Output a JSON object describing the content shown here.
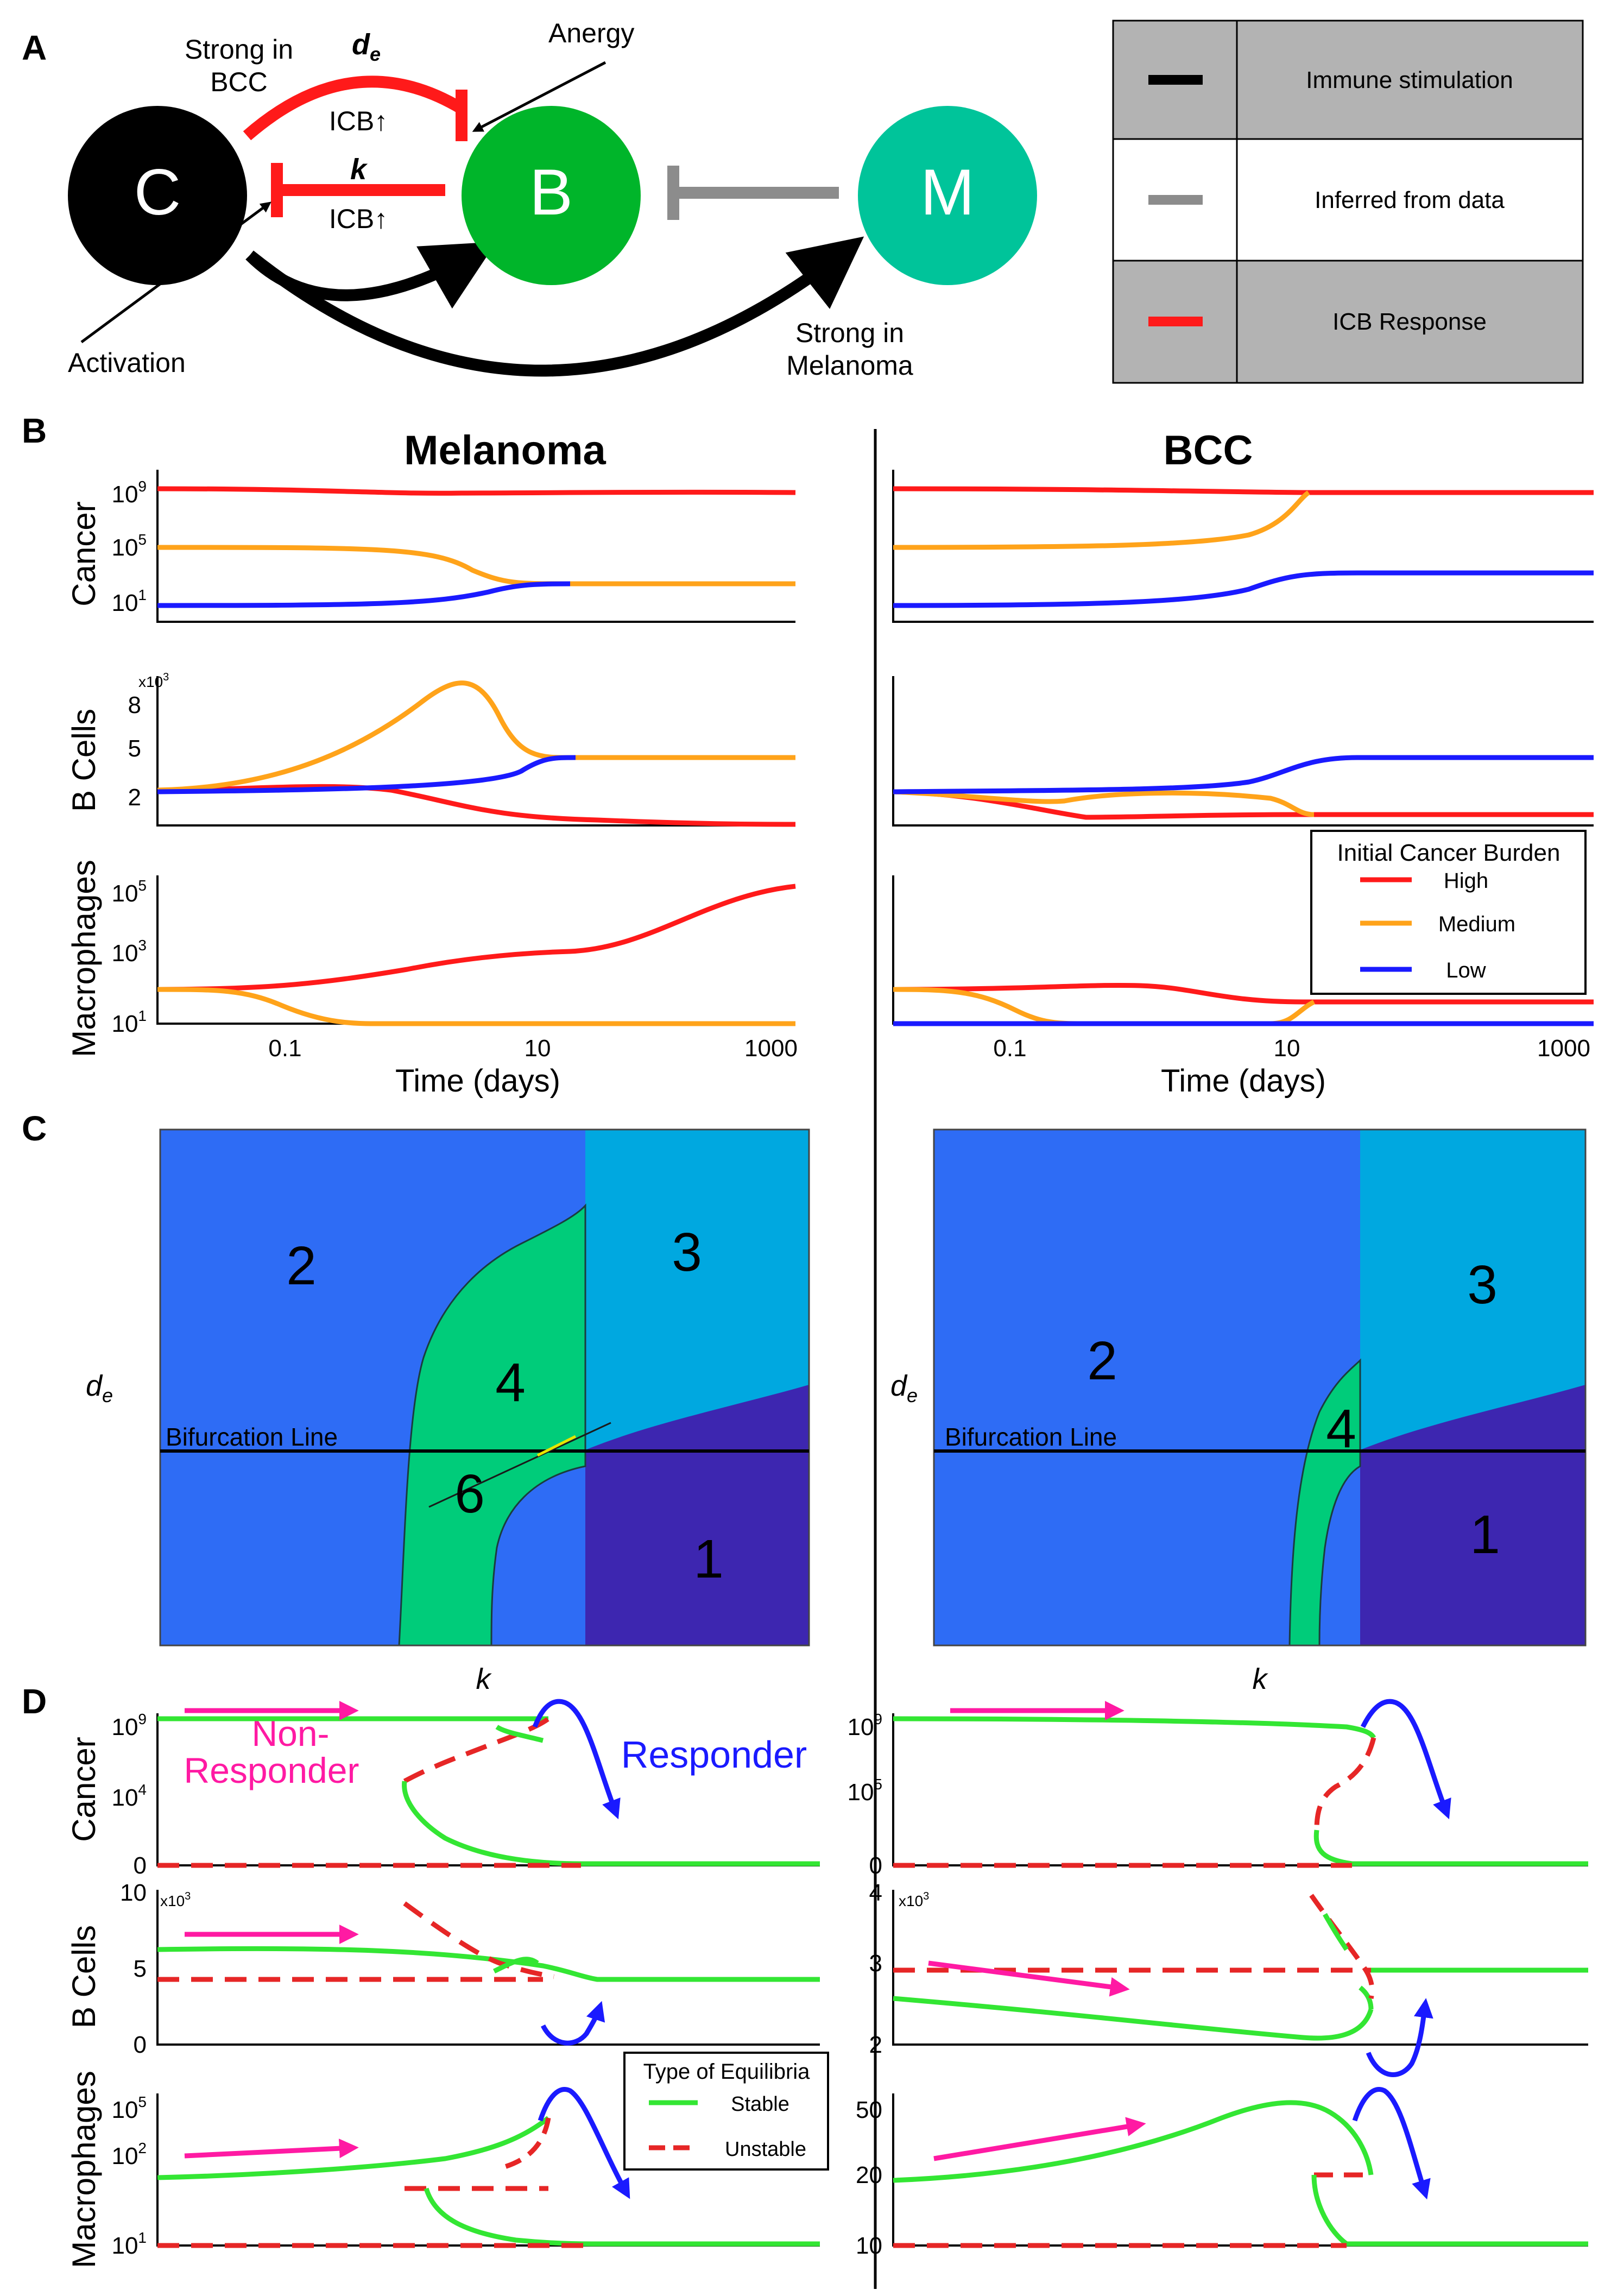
{
  "panel_labels": {
    "a": "A",
    "b": "B",
    "c": "C",
    "d": "D"
  },
  "diagram": {
    "nodes": {
      "c": "C",
      "b": "B",
      "m": "M"
    },
    "labels": {
      "strong_bcc_1": "Strong in",
      "strong_bcc_2": "BCC",
      "de": "d",
      "de_sub": "e",
      "anergy": "Anergy",
      "icb_top": "ICB↑",
      "k": "k",
      "icb_bottom": "ICB↑",
      "activation": "Activation",
      "strong_mel_1": "Strong in",
      "strong_mel_2": "Melanoma"
    },
    "colors": {
      "c": "#000000",
      "b": "#00b52a",
      "m": "#00c49a",
      "red": "#ff1a1a",
      "gray": "#8c8c8c"
    }
  },
  "legend_table": [
    {
      "label": "Immune stimulation",
      "color": "#000000",
      "bg": "#b3b3b3"
    },
    {
      "label": "Inferred from data",
      "color": "#8c8c8c",
      "bg": "#ffffff"
    },
    {
      "label": "ICB Response",
      "color": "#ff1a1a",
      "bg": "#b3b3b3"
    }
  ],
  "panel_b": {
    "titles": {
      "melanoma": "Melanoma",
      "bcc": "BCC"
    },
    "row_labels": {
      "cancer": "Cancer",
      "bcells": "B Cells",
      "macrophages": "Macrophages"
    },
    "xlabel": "Time (days)",
    "xticks": [
      "0.1",
      "10",
      "1000"
    ],
    "cancer_ticks": {
      "t9": "10",
      "e9": "9",
      "t5": "10",
      "e5": "5",
      "t1": "10",
      "e1": "1"
    },
    "bcell_ticks": [
      "8",
      "5",
      "2"
    ],
    "bcell_multiplier": "x10",
    "bcell_exp": "3",
    "mac_ticks": {
      "t5": "10",
      "e5": "5",
      "t3": "10",
      "e3": "3",
      "t1": "10",
      "e1": "1"
    },
    "legend": {
      "title": "Initial Cancer Burden",
      "items": [
        {
          "label": "High",
          "color": "#ff1a1a"
        },
        {
          "label": "Medium",
          "color": "#ffa31a"
        },
        {
          "label": "Low",
          "color": "#1a1aff"
        }
      ]
    }
  },
  "panel_c": {
    "xlabel": "k",
    "ylabel": "d",
    "ylabel_sub": "e",
    "bifurcation_label": "Bifurcation Line",
    "regions": {
      "r1": "1",
      "r2": "2",
      "r3": "3",
      "r4": "4",
      "r6": "6"
    },
    "colors": {
      "r1": "#3d26b0",
      "r2": "#2e6cf5",
      "r3": "#00a8e0",
      "r4": "#00cc7a"
    }
  },
  "panel_d": {
    "non_responder_1": "Non-",
    "non_responder_2": "Responder",
    "responder": "Responder",
    "mel_cancer_ticks": {
      "t9": "10",
      "e9": "9",
      "t4": "10",
      "e4": "4",
      "zero": "0"
    },
    "bcc_cancer_ticks": {
      "t9": "10",
      "e9": "9",
      "t5": "10",
      "e5": "5",
      "zero": "0"
    },
    "mel_bcell_ticks": [
      "10",
      "5",
      "0"
    ],
    "bcc_bcell_ticks": [
      "4",
      "3",
      "2"
    ],
    "bcell_multiplier": "x10",
    "bcell_exp": "3",
    "mel_mac_ticks": {
      "t5": "10",
      "e5": "5",
      "t2": "10",
      "e2": "2",
      "t1": "10",
      "e1": "1"
    },
    "bcc_mac_ticks": [
      "50",
      "20",
      "10"
    ],
    "legend": {
      "title": "Type of Equilibria",
      "items": [
        {
          "label": "Stable",
          "color": "#33e633"
        },
        {
          "label": "Unstable",
          "color": "#e62626"
        }
      ]
    }
  }
}
